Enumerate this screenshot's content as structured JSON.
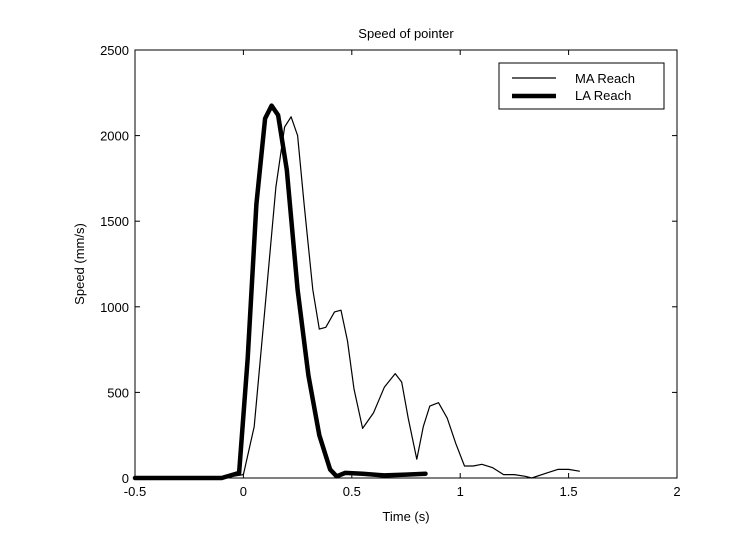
{
  "chart_data": {
    "type": "line",
    "title": "Speed of pointer",
    "xlabel": "Time (s)",
    "ylabel": "Speed (mm/s)",
    "xlim": [
      -0.5,
      2
    ],
    "ylim": [
      0,
      2500
    ],
    "xticks": [
      -0.5,
      0,
      0.5,
      1,
      1.5,
      2
    ],
    "xtick_labels": [
      "-0.5",
      "0",
      "0.5",
      "1",
      "1.5",
      "2"
    ],
    "yticks": [
      0,
      500,
      1000,
      1500,
      2000,
      2500
    ],
    "ytick_labels": [
      "0",
      "500",
      "1000",
      "1500",
      "2000",
      "2500"
    ],
    "grid": false,
    "legend_position": "top-right",
    "series": [
      {
        "name": "MA Reach",
        "color": "#000000",
        "style": "thin",
        "x": [
          -0.5,
          -0.1,
          0,
          0.05,
          0.1,
          0.15,
          0.19,
          0.22,
          0.25,
          0.28,
          0.32,
          0.35,
          0.38,
          0.42,
          0.45,
          0.48,
          0.51,
          0.55,
          0.6,
          0.65,
          0.7,
          0.73,
          0.76,
          0.8,
          0.83,
          0.86,
          0.9,
          0.94,
          0.98,
          1.02,
          1.06,
          1.1,
          1.15,
          1.2,
          1.25,
          1.3,
          1.33,
          1.4,
          1.45,
          1.5,
          1.55
        ],
        "y": [
          0,
          0,
          20,
          300,
          1000,
          1700,
          2050,
          2110,
          2000,
          1600,
          1100,
          870,
          880,
          970,
          980,
          800,
          520,
          290,
          380,
          530,
          610,
          560,
          350,
          110,
          300,
          420,
          440,
          350,
          200,
          70,
          70,
          80,
          60,
          20,
          20,
          10,
          0,
          30,
          50,
          50,
          40
        ]
      },
      {
        "name": "LA Reach",
        "color": "#000000",
        "style": "thick",
        "x": [
          -0.5,
          -0.1,
          -0.02,
          0.02,
          0.06,
          0.1,
          0.13,
          0.16,
          0.2,
          0.25,
          0.3,
          0.35,
          0.4,
          0.43,
          0.47,
          0.55,
          0.65,
          0.75,
          0.84
        ],
        "y": [
          0,
          0,
          30,
          700,
          1600,
          2100,
          2175,
          2120,
          1800,
          1100,
          600,
          250,
          50,
          10,
          30,
          25,
          15,
          20,
          25
        ]
      }
    ]
  }
}
